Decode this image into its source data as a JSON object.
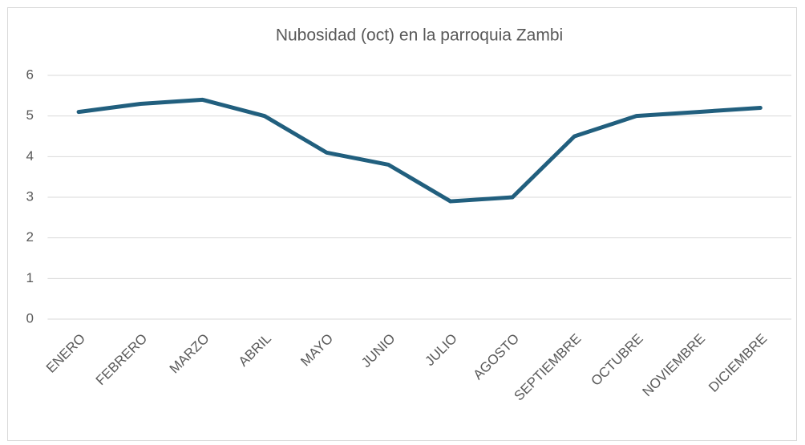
{
  "chart_data": {
    "type": "line",
    "title": "Nubosidad (oct) en la parroquia Zambi",
    "categories": [
      "ENERO",
      "FEBRERO",
      "MARZO",
      "ABRIL",
      "MAYO",
      "JUNIO",
      "JULIO",
      "AGOSTO",
      "SEPTIEMBRE",
      "OCTUBRE",
      "NOVIEMBRE",
      "DICIEMBRE"
    ],
    "values": [
      5.1,
      5.3,
      5.4,
      5.0,
      4.1,
      3.8,
      2.9,
      3.0,
      4.5,
      5.0,
      5.1,
      5.2
    ],
    "color": "#215f7e",
    "ylim": [
      0,
      6
    ],
    "yticks": [
      0,
      1,
      2,
      3,
      4,
      5,
      6
    ],
    "grid": true
  }
}
